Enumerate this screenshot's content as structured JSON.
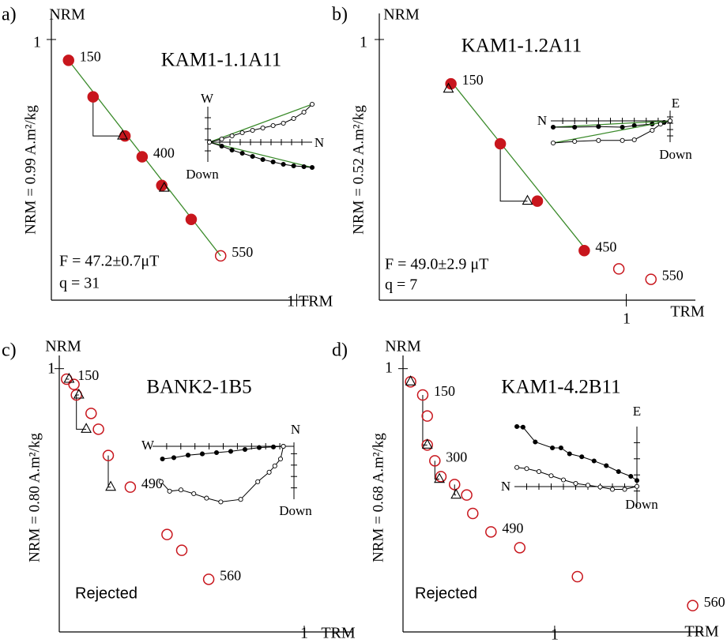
{
  "chart_data": [
    {
      "type": "scatter",
      "panel": "a)",
      "title": "KAM1-1.1A11",
      "ylabel": "NRM = 0.99 A.m²/kg",
      "y_axis_title": "NRM",
      "x_axis_title": "TRM",
      "xlim": [
        0,
        1.05
      ],
      "ylim": [
        0,
        1.1
      ],
      "xticks": [
        1
      ],
      "yticks": [
        1
      ],
      "series": [
        {
          "marker": "filled",
          "color": "#c8161d",
          "x": [
            0.07,
            0.17,
            0.3,
            0.37,
            0.45,
            0.57
          ],
          "values": [
            0.92,
            0.78,
            0.63,
            0.55,
            0.44,
            0.31
          ],
          "labels": [
            150,
            null,
            null,
            400,
            null,
            null
          ]
        },
        {
          "marker": "open",
          "color": "#c8161d",
          "x": [
            0.69
          ],
          "values": [
            0.17
          ],
          "labels": [
            550
          ]
        },
        {
          "marker": "triangle",
          "color": "#000000",
          "x": [
            0.29,
            0.46
          ],
          "values": [
            0.63,
            0.43
          ]
        }
      ],
      "fit_line": {
        "color": "#3a8a2a",
        "x": [
          0.07,
          0.69
        ],
        "values": [
          0.92,
          0.17
        ]
      },
      "annotations": [
        {
          "text": "F = 47.2±0.7μT",
          "color": "#000000"
        },
        {
          "text": "q = 31",
          "color": "#000000"
        }
      ],
      "inset": {
        "axis_labels": [
          "W",
          "N",
          "Down"
        ],
        "fit": true,
        "fit_color": "#3a8a2a",
        "series": [
          {
            "marker": "filled",
            "x": [
              0,
              0.12,
              0.22,
              0.32,
              0.42,
              0.52,
              0.62,
              0.72,
              0.82,
              0.92,
              1.0
            ],
            "values": [
              0,
              -0.1,
              -0.2,
              -0.28,
              -0.36,
              -0.44,
              -0.5,
              -0.56,
              -0.6,
              -0.62,
              -0.64
            ]
          },
          {
            "marker": "open",
            "x": [
              0,
              0.12,
              0.22,
              0.32,
              0.42,
              0.52,
              0.62,
              0.72,
              0.82,
              0.92,
              1.0
            ],
            "values": [
              0,
              0.08,
              0.16,
              0.24,
              0.3,
              0.36,
              0.42,
              0.48,
              0.6,
              0.76,
              0.96
            ]
          }
        ]
      }
    },
    {
      "type": "scatter",
      "panel": "b)",
      "title": "KAM1-1.2A11",
      "ylabel": "NRM = 0.52 A.m²/kg",
      "y_axis_title": "NRM",
      "x_axis_title": "TRM",
      "xlim": [
        0,
        1.28
      ],
      "ylim": [
        0,
        1.1
      ],
      "xticks": [
        1
      ],
      "yticks": [
        1
      ],
      "series": [
        {
          "marker": "filled",
          "color": "#c8161d",
          "x": [
            0.29,
            0.49,
            0.64,
            0.83
          ],
          "values": [
            0.83,
            0.6,
            0.38,
            0.19
          ],
          "labels": [
            150,
            null,
            null,
            450
          ]
        },
        {
          "marker": "open",
          "color": "#c8161d",
          "x": [
            0.97,
            1.1
          ],
          "values": [
            0.12,
            0.08
          ],
          "labels": [
            null,
            550
          ]
        },
        {
          "marker": "triangle",
          "color": "#000000",
          "x": [
            0.28,
            0.6
          ],
          "values": [
            0.81,
            0.38
          ]
        }
      ],
      "fit_line": {
        "color": "#3a8a2a",
        "x": [
          0.29,
          0.84
        ],
        "values": [
          0.84,
          0.19
        ]
      },
      "annotations": [
        {
          "text": "F = 49.0±2.9 μT",
          "color": "#000000"
        },
        {
          "text": "q = 7",
          "color": "#000000"
        }
      ],
      "inset": {
        "axis_labels": [
          "N",
          "E",
          "Down"
        ],
        "fit": true,
        "fit_color": "#3a8a2a",
        "series": [
          {
            "marker": "filled",
            "x": [
              0.02,
              0.2,
              0.4,
              0.6,
              0.7,
              0.85,
              0.95,
              1.0
            ],
            "values": [
              -0.2,
              -0.2,
              -0.18,
              -0.2,
              -0.15,
              -0.1,
              -0.05,
              0
            ]
          },
          {
            "marker": "open",
            "x": [
              0.02,
              0.2,
              0.4,
              0.6,
              0.7,
              0.85,
              0.92,
              1.0
            ],
            "values": [
              -0.7,
              -0.65,
              -0.62,
              -0.62,
              -0.6,
              -0.3,
              -0.1,
              0
            ]
          }
        ]
      }
    },
    {
      "type": "scatter",
      "panel": "c)",
      "title": "BANK2-1B5",
      "ylabel": "NRM = 0.80 A.m²/kg",
      "y_axis_title": "NRM",
      "x_axis_title": "TRM",
      "xlim": [
        0,
        1.2
      ],
      "ylim": [
        0,
        1.05
      ],
      "xticks": [
        1
      ],
      "yticks": [
        1
      ],
      "series": [
        {
          "marker": "open",
          "color": "#c8161d",
          "x": [
            0.03,
            0.06,
            0.07,
            0.13,
            0.16,
            0.2,
            0.29,
            0.44,
            0.5,
            0.61
          ],
          "values": [
            0.96,
            0.94,
            0.9,
            0.83,
            0.77,
            0.67,
            0.55,
            0.37,
            0.31,
            0.2
          ],
          "labels": [
            150,
            null,
            null,
            null,
            null,
            null,
            490,
            null,
            null,
            560
          ]
        },
        {
          "marker": "triangle",
          "color": "#000000",
          "x": [
            0.04,
            0.08,
            0.11,
            0.21
          ],
          "values": [
            0.96,
            0.9,
            0.77,
            0.55
          ]
        }
      ],
      "annotations": [
        {
          "text": "Rejected",
          "color": "#c8161d"
        }
      ],
      "inset": {
        "axis_labels": [
          "W",
          "N",
          "Down"
        ],
        "fit": false,
        "series": [
          {
            "marker": "filled",
            "x": [
              0.07,
              0.15,
              0.25,
              0.35,
              0.45,
              0.55,
              0.65,
              0.75,
              0.85,
              0.92
            ],
            "values": [
              -0.2,
              -0.18,
              -0.14,
              -0.12,
              -0.1,
              -0.08,
              -0.05,
              -0.02,
              -0.01,
              0
            ]
          },
          {
            "marker": "open",
            "x": [
              0.06,
              0.12,
              0.2,
              0.29,
              0.38,
              0.48,
              0.62,
              0.74,
              0.82,
              0.86,
              0.9,
              0.92
            ],
            "values": [
              -0.56,
              -0.71,
              -0.69,
              -0.75,
              -0.82,
              -0.88,
              -0.84,
              -0.56,
              -0.41,
              -0.31,
              -0.2,
              0
            ]
          }
        ]
      }
    },
    {
      "type": "scatter",
      "panel": "d)",
      "title": "KAM1-4.2B11",
      "ylabel": "NRM = 0.68 A.m²/kg",
      "y_axis_title": "NRM",
      "x_axis_title": "TRM",
      "xlim": [
        0,
        1.98
      ],
      "ylim": [
        0,
        1.05
      ],
      "xticks": [
        1
      ],
      "yticks": [
        1
      ],
      "series": [
        {
          "marker": "open",
          "color": "#c8161d",
          "x": [
            0.05,
            0.13,
            0.16,
            0.16,
            0.21,
            0.25,
            0.34,
            0.42,
            0.46,
            0.58,
            0.77,
            1.15,
            1.91
          ],
          "values": [
            0.95,
            0.9,
            0.82,
            0.71,
            0.65,
            0.59,
            0.56,
            0.52,
            0.45,
            0.38,
            0.32,
            0.21,
            0.1
          ],
          "labels": [
            null,
            150,
            null,
            null,
            300,
            null,
            null,
            null,
            null,
            490,
            null,
            null,
            560
          ]
        },
        {
          "marker": "triangle",
          "color": "#000000",
          "x": [
            0.05,
            0.16,
            0.24,
            0.35
          ],
          "values": [
            0.95,
            0.71,
            0.58,
            0.52
          ]
        }
      ],
      "annotations": [
        {
          "text": "Rejected",
          "color": "#c8161d"
        }
      ],
      "inset": {
        "axis_labels": [
          "N",
          "E",
          "Down"
        ],
        "fit": false,
        "series": [
          {
            "marker": "filled",
            "x": [
              0.02,
              0.07,
              0.17,
              0.31,
              0.38,
              0.45,
              0.55,
              0.65,
              0.75,
              0.85,
              0.95,
              1.0
            ],
            "values": [
              0.96,
              0.95,
              0.7,
              0.6,
              0.6,
              0.5,
              0.45,
              0.38,
              0.3,
              0.2,
              0.12,
              0.05
            ]
          },
          {
            "marker": "open",
            "x": [
              0.02,
              0.1,
              0.2,
              0.3,
              0.4,
              0.5,
              0.6,
              0.7,
              0.8,
              0.9,
              1.0
            ],
            "values": [
              0.27,
              0.25,
              0.2,
              0.13,
              0.06,
              0.0,
              -0.03,
              -0.06,
              -0.1,
              -0.1,
              -0.05
            ]
          }
        ]
      }
    }
  ]
}
